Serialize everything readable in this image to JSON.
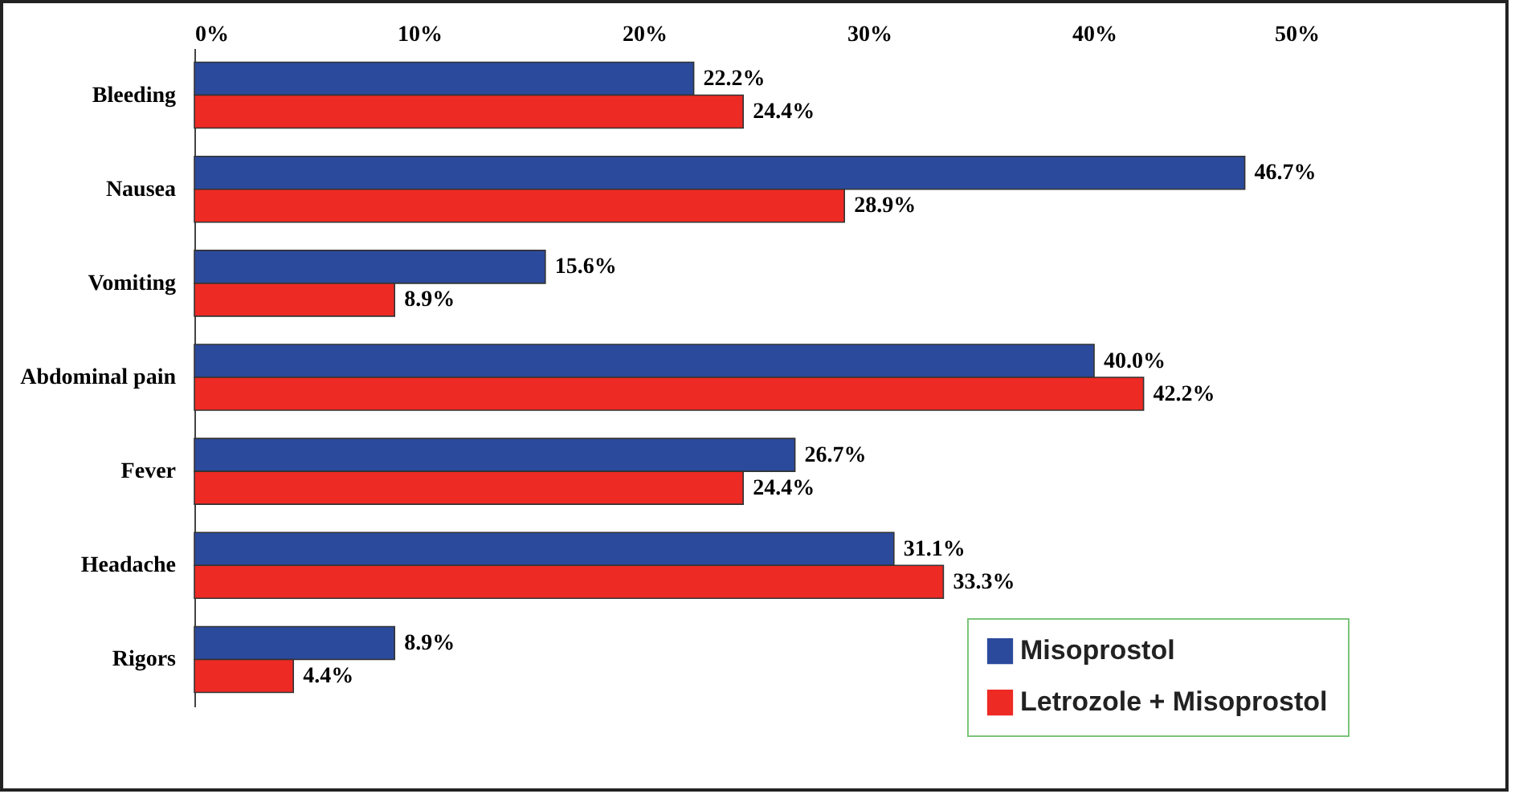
{
  "chart_data": {
    "type": "bar",
    "orientation": "horizontal",
    "categories": [
      "Bleeding",
      "Nausea",
      "Vomiting",
      "Abdominal pain",
      "Fever",
      "Headache",
      "Rigors"
    ],
    "series": [
      {
        "name": "Misoprostol",
        "color": "#2b4a9c",
        "values": [
          22.2,
          46.7,
          15.6,
          40.0,
          26.7,
          31.1,
          8.9
        ],
        "value_labels": [
          "22.2%",
          "46.7%",
          "15.6%",
          "40.0%",
          "26.7%",
          "31.1%",
          "8.9%"
        ]
      },
      {
        "name": "Letrozole + Misoprostol",
        "color": "#ee2a24",
        "values": [
          24.4,
          28.9,
          8.9,
          42.2,
          24.4,
          33.3,
          4.4
        ],
        "value_labels": [
          "24.4%",
          "28.9%",
          "8.9%",
          "42.2%",
          "24.4%",
          "33.3%",
          "4.4%"
        ]
      }
    ],
    "xlim": [
      0,
      50
    ],
    "xticks": [
      {
        "value": 0,
        "label": "0%"
      },
      {
        "value": 10,
        "label": "10%"
      },
      {
        "value": 20,
        "label": "20%"
      },
      {
        "value": 30,
        "label": "30%"
      },
      {
        "value": 40,
        "label": "40%"
      },
      {
        "value": 50,
        "label": "50%"
      }
    ],
    "grid": false,
    "legend": "bottom right"
  }
}
